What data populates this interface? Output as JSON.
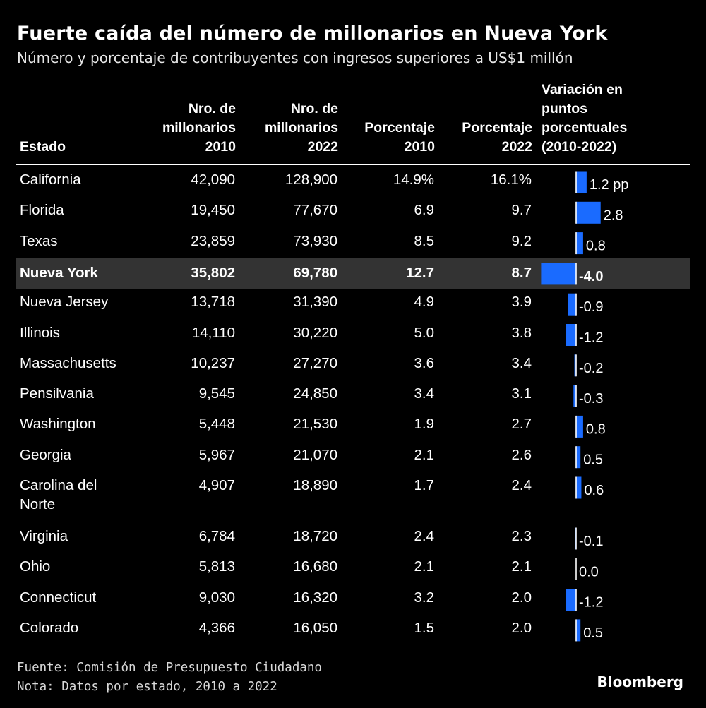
{
  "title": "Fuerte caída del número de millonarios en Nueva York",
  "subtitle": "Número y porcentaje de contribuyentes con ingresos superiores a US$1 millón",
  "headers": {
    "estado": "Estado",
    "n2010": "Nro. de\nmillonarios\n2010",
    "n2022": "Nro. de\nmillonarios\n2022",
    "p2010": "Porcentaje\n2010",
    "p2022": "Porcentaje\n2022",
    "variacion": "Variación en\npuntos\nporcentuales\n(2010-2022)"
  },
  "colors": {
    "background": "#000000",
    "bar": "#1a6bff",
    "highlight_row": "#333333",
    "text": "#ffffff"
  },
  "chart_data": {
    "type": "table",
    "highlighted_row": "Nueva York",
    "columns": [
      "Estado",
      "Nro. de millonarios 2010",
      "Nro. de millonarios 2022",
      "Porcentaje 2010",
      "Porcentaje 2022",
      "Variación en puntos porcentuales (2010-2022)"
    ],
    "rows": [
      {
        "estado": "California",
        "n2010": "42,090",
        "n2022": "128,900",
        "p2010": "14.9%",
        "p2022": "16.1%",
        "change": 1.2,
        "change_label": "1.2 pp"
      },
      {
        "estado": "Florida",
        "n2010": "19,450",
        "n2022": "77,670",
        "p2010": "6.9",
        "p2022": "9.7",
        "change": 2.8,
        "change_label": "2.8"
      },
      {
        "estado": "Texas",
        "n2010": "23,859",
        "n2022": "73,930",
        "p2010": "8.5",
        "p2022": "9.2",
        "change": 0.8,
        "change_label": "0.8"
      },
      {
        "estado": "Nueva York",
        "n2010": "35,802",
        "n2022": "69,780",
        "p2010": "12.7",
        "p2022": "8.7",
        "change": -4.0,
        "change_label": "-4.0"
      },
      {
        "estado": "Nueva Jersey",
        "n2010": "13,718",
        "n2022": "31,390",
        "p2010": "4.9",
        "p2022": "3.9",
        "change": -0.9,
        "change_label": "-0.9"
      },
      {
        "estado": "Illinois",
        "n2010": "14,110",
        "n2022": "30,220",
        "p2010": "5.0",
        "p2022": "3.8",
        "change": -1.2,
        "change_label": "-1.2"
      },
      {
        "estado": "Massachusetts",
        "n2010": "10,237",
        "n2022": "27,270",
        "p2010": "3.6",
        "p2022": "3.4",
        "change": -0.2,
        "change_label": "-0.2"
      },
      {
        "estado": "Pensilvania",
        "n2010": "9,545",
        "n2022": "24,850",
        "p2010": "3.4",
        "p2022": "3.1",
        "change": -0.3,
        "change_label": "-0.3"
      },
      {
        "estado": "Washington",
        "n2010": "5,448",
        "n2022": "21,530",
        "p2010": "1.9",
        "p2022": "2.7",
        "change": 0.8,
        "change_label": "0.8"
      },
      {
        "estado": "Georgia",
        "n2010": "5,967",
        "n2022": "21,070",
        "p2010": "2.1",
        "p2022": "2.6",
        "change": 0.5,
        "change_label": "0.5"
      },
      {
        "estado": "Carolina del\nNorte",
        "n2010": "4,907",
        "n2022": "18,890",
        "p2010": "1.7",
        "p2022": "2.4",
        "change": 0.6,
        "change_label": "0.6"
      },
      {
        "estado": "Virginia",
        "n2010": "6,784",
        "n2022": "18,720",
        "p2010": "2.4",
        "p2022": "2.3",
        "change": -0.1,
        "change_label": "-0.1"
      },
      {
        "estado": "Ohio",
        "n2010": "5,813",
        "n2022": "16,680",
        "p2010": "2.1",
        "p2022": "2.1",
        "change": 0.0,
        "change_label": "0.0"
      },
      {
        "estado": "Connecticut",
        "n2010": "9,030",
        "n2022": "16,320",
        "p2010": "3.2",
        "p2022": "2.0",
        "change": -1.2,
        "change_label": "-1.2"
      },
      {
        "estado": "Colorado",
        "n2010": "4,366",
        "n2022": "16,050",
        "p2010": "1.5",
        "p2022": "2.0",
        "change": 0.5,
        "change_label": "0.5"
      }
    ]
  },
  "footer": {
    "source": "Fuente: Comisión de Presupuesto Ciudadano",
    "note": "Nota: Datos por estado, 2010 a 2022",
    "brand": "Bloomberg"
  }
}
